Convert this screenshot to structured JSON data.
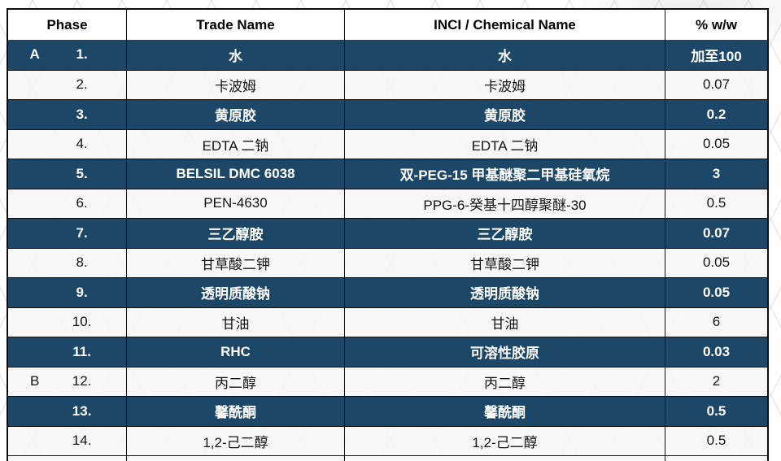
{
  "table": {
    "columns": [
      {
        "label": "Phase"
      },
      {
        "label": "Trade Name"
      },
      {
        "label": "INCI / Chemical Name"
      },
      {
        "label": "% w/w"
      }
    ],
    "rows": [
      {
        "phase": "A",
        "no": "1.",
        "trade": "水",
        "inci": "水",
        "pct": "加至100",
        "dark": true
      },
      {
        "phase": "",
        "no": "2.",
        "trade": "卡波姆",
        "inci": "卡波姆",
        "pct": "0.07",
        "dark": false
      },
      {
        "phase": "",
        "no": "3.",
        "trade": "黄原胶",
        "inci": "黄原胶",
        "pct": "0.2",
        "dark": true
      },
      {
        "phase": "",
        "no": "4.",
        "trade": "EDTA 二钠",
        "inci": "EDTA 二钠",
        "pct": "0.05",
        "dark": false
      },
      {
        "phase": "",
        "no": "5.",
        "trade": "BELSIL DMC 6038",
        "inci": "双-PEG-15 甲基醚聚二甲基硅氧烷",
        "pct": "3",
        "dark": true
      },
      {
        "phase": "",
        "no": "6.",
        "trade": "PEN-4630",
        "inci": "PPG-6-癸基十四醇聚醚-30",
        "pct": "0.5",
        "dark": false
      },
      {
        "phase": "",
        "no": "7.",
        "trade": "三乙醇胺",
        "inci": "三乙醇胺",
        "pct": "0.07",
        "dark": true
      },
      {
        "phase": "",
        "no": "8.",
        "trade": "甘草酸二钾",
        "inci": "甘草酸二钾",
        "pct": "0.05",
        "dark": false
      },
      {
        "phase": "",
        "no": "9.",
        "trade": "透明质酸钠",
        "inci": "透明质酸钠",
        "pct": "0.05",
        "dark": true
      },
      {
        "phase": "",
        "no": "10.",
        "trade": "甘油",
        "inci": "甘油",
        "pct": "6",
        "dark": false
      },
      {
        "phase": "",
        "no": "11.",
        "trade": "RHC",
        "inci": "可溶性胶原",
        "pct": "0.03",
        "dark": true
      },
      {
        "phase": "B",
        "no": "12.",
        "trade": "丙二醇",
        "inci": "丙二醇",
        "pct": "2",
        "dark": false
      },
      {
        "phase": "",
        "no": "13.",
        "trade": "馨酰酮",
        "inci": "馨酰酮",
        "pct": "0.5",
        "dark": true
      },
      {
        "phase": "",
        "no": "14.",
        "trade": "1,2-己二醇",
        "inci": "1,2-己二醇",
        "pct": "0.5",
        "dark": false
      }
    ]
  },
  "colors": {
    "dark_row_bg": "#1c4767",
    "dark_row_text": "#ffffff",
    "light_row_bg": "#f4f4f4",
    "border": "#0d0d0d",
    "header_bg": "#ffffff",
    "header_text": "#000000"
  }
}
